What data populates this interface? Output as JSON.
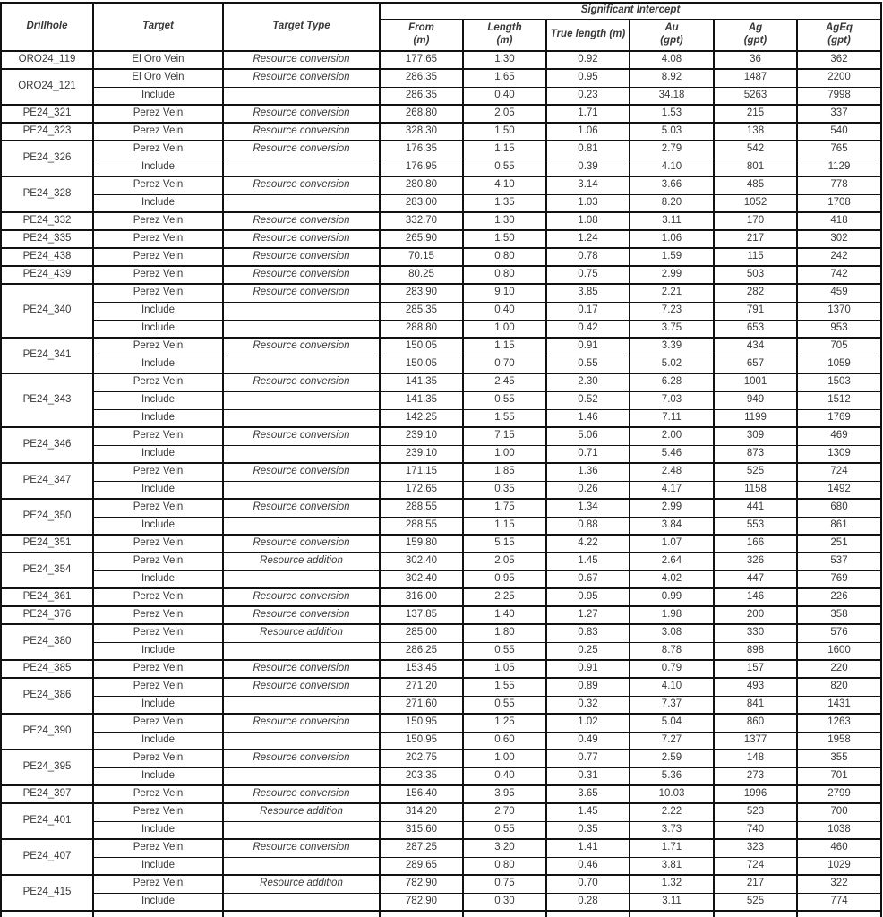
{
  "table": {
    "header": {
      "drillhole": "Drillhole",
      "target": "Target",
      "target_type": "Target Type",
      "significant_intercept": "Significant Intercept",
      "columns": [
        {
          "label": "From",
          "unit": "(m)"
        },
        {
          "label": "Length",
          "unit": "(m)"
        },
        {
          "label": "True length (m)",
          "unit": ""
        },
        {
          "label": "Au",
          "unit": "(gpt)"
        },
        {
          "label": "Ag",
          "unit": "(gpt)"
        },
        {
          "label": "AgEq",
          "unit": "(gpt)"
        }
      ]
    },
    "groups": [
      {
        "drillhole": "ORO24_119",
        "rows": [
          {
            "target": "El Oro Vein",
            "target_type": "Resource conversion",
            "from": "177.65",
            "length": "1.30",
            "true_length": "0.92",
            "au": "4.08",
            "ag": "36",
            "ageq": "362"
          }
        ]
      },
      {
        "drillhole": "ORO24_121",
        "rows": [
          {
            "target": "El Oro Vein",
            "target_type": "Resource conversion",
            "from": "286.35",
            "length": "1.65",
            "true_length": "0.95",
            "au": "8.92",
            "ag": "1487",
            "ageq": "2200"
          },
          {
            "target": "Include",
            "target_type": "",
            "from": "286.35",
            "length": "0.40",
            "true_length": "0.23",
            "au": "34.18",
            "ag": "5263",
            "ageq": "7998"
          }
        ]
      },
      {
        "drillhole": "PE24_321",
        "rows": [
          {
            "target": "Perez Vein",
            "target_type": "Resource conversion",
            "from": "268.80",
            "length": "2.05",
            "true_length": "1.71",
            "au": "1.53",
            "ag": "215",
            "ageq": "337"
          }
        ]
      },
      {
        "drillhole": "PE24_323",
        "rows": [
          {
            "target": "Perez Vein",
            "target_type": "Resource conversion",
            "from": "328.30",
            "length": "1.50",
            "true_length": "1.06",
            "au": "5.03",
            "ag": "138",
            "ageq": "540"
          }
        ]
      },
      {
        "drillhole": "PE24_326",
        "rows": [
          {
            "target": "Perez Vein",
            "target_type": "Resource conversion",
            "from": "176.35",
            "length": "1.15",
            "true_length": "0.81",
            "au": "2.79",
            "ag": "542",
            "ageq": "765"
          },
          {
            "target": "Include",
            "target_type": "",
            "from": "176.95",
            "length": "0.55",
            "true_length": "0.39",
            "au": "4.10",
            "ag": "801",
            "ageq": "1129"
          }
        ]
      },
      {
        "drillhole": "PE24_328",
        "rows": [
          {
            "target": "Perez Vein",
            "target_type": "Resource conversion",
            "from": "280.80",
            "length": "4.10",
            "true_length": "3.14",
            "au": "3.66",
            "ag": "485",
            "ageq": "778"
          },
          {
            "target": "Include",
            "target_type": "",
            "from": "283.00",
            "length": "1.35",
            "true_length": "1.03",
            "au": "8.20",
            "ag": "1052",
            "ageq": "1708"
          }
        ]
      },
      {
        "drillhole": "PE24_332",
        "rows": [
          {
            "target": "Perez Vein",
            "target_type": "Resource conversion",
            "from": "332.70",
            "length": "1.30",
            "true_length": "1.08",
            "au": "3.11",
            "ag": "170",
            "ageq": "418"
          }
        ]
      },
      {
        "drillhole": "PE24_335",
        "rows": [
          {
            "target": "Perez Vein",
            "target_type": "Resource conversion",
            "from": "265.90",
            "length": "1.50",
            "true_length": "1.24",
            "au": "1.06",
            "ag": "217",
            "ageq": "302"
          }
        ]
      },
      {
        "drillhole": "PE24_438",
        "rows": [
          {
            "target": "Perez Vein",
            "target_type": "Resource conversion",
            "from": "70.15",
            "length": "0.80",
            "true_length": "0.78",
            "au": "1.59",
            "ag": "115",
            "ageq": "242"
          }
        ]
      },
      {
        "drillhole": "PE24_439",
        "rows": [
          {
            "target": "Perez Vein",
            "target_type": "Resource conversion",
            "from": "80.25",
            "length": "0.80",
            "true_length": "0.75",
            "au": "2.99",
            "ag": "503",
            "ageq": "742"
          }
        ]
      },
      {
        "drillhole": "PE24_340",
        "rows": [
          {
            "target": "Perez Vein",
            "target_type": "Resource conversion",
            "from": "283.90",
            "length": "9.10",
            "true_length": "3.85",
            "au": "2.21",
            "ag": "282",
            "ageq": "459"
          },
          {
            "target": "Include",
            "target_type": "",
            "from": "285.35",
            "length": "0.40",
            "true_length": "0.17",
            "au": "7.23",
            "ag": "791",
            "ageq": "1370"
          },
          {
            "target": "Include",
            "target_type": "",
            "from": "288.80",
            "length": "1.00",
            "true_length": "0.42",
            "au": "3.75",
            "ag": "653",
            "ageq": "953"
          }
        ]
      },
      {
        "drillhole": "PE24_341",
        "rows": [
          {
            "target": "Perez Vein",
            "target_type": "Resource conversion",
            "from": "150.05",
            "length": "1.15",
            "true_length": "0.91",
            "au": "3.39",
            "ag": "434",
            "ageq": "705"
          },
          {
            "target": "Include",
            "target_type": "",
            "from": "150.05",
            "length": "0.70",
            "true_length": "0.55",
            "au": "5.02",
            "ag": "657",
            "ageq": "1059"
          }
        ]
      },
      {
        "drillhole": "PE24_343",
        "rows": [
          {
            "target": "Perez Vein",
            "target_type": "Resource conversion",
            "from": "141.35",
            "length": "2.45",
            "true_length": "2.30",
            "au": "6.28",
            "ag": "1001",
            "ageq": "1503"
          },
          {
            "target": "Include",
            "target_type": "",
            "from": "141.35",
            "length": "0.55",
            "true_length": "0.52",
            "au": "7.03",
            "ag": "949",
            "ageq": "1512"
          },
          {
            "target": "Include",
            "target_type": "",
            "from": "142.25",
            "length": "1.55",
            "true_length": "1.46",
            "au": "7.11",
            "ag": "1199",
            "ageq": "1769"
          }
        ]
      },
      {
        "drillhole": "PE24_346",
        "rows": [
          {
            "target": "Perez Vein",
            "target_type": "Resource conversion",
            "from": "239.10",
            "length": "7.15",
            "true_length": "5.06",
            "au": "2.00",
            "ag": "309",
            "ageq": "469"
          },
          {
            "target": "Include",
            "target_type": "",
            "from": "239.10",
            "length": "1.00",
            "true_length": "0.71",
            "au": "5.46",
            "ag": "873",
            "ageq": "1309"
          }
        ]
      },
      {
        "drillhole": "PE24_347",
        "rows": [
          {
            "target": "Perez Vein",
            "target_type": "Resource conversion",
            "from": "171.15",
            "length": "1.85",
            "true_length": "1.36",
            "au": "2.48",
            "ag": "525",
            "ageq": "724"
          },
          {
            "target": "Include",
            "target_type": "",
            "from": "172.65",
            "length": "0.35",
            "true_length": "0.26",
            "au": "4.17",
            "ag": "1158",
            "ageq": "1492"
          }
        ]
      },
      {
        "drillhole": "PE24_350",
        "rows": [
          {
            "target": "Perez Vein",
            "target_type": "Resource conversion",
            "from": "288.55",
            "length": "1.75",
            "true_length": "1.34",
            "au": "2.99",
            "ag": "441",
            "ageq": "680"
          },
          {
            "target": "Include",
            "target_type": "",
            "from": "288.55",
            "length": "1.15",
            "true_length": "0.88",
            "au": "3.84",
            "ag": "553",
            "ageq": "861"
          }
        ]
      },
      {
        "drillhole": "PE24_351",
        "rows": [
          {
            "target": "Perez Vein",
            "target_type": "Resource conversion",
            "from": "159.80",
            "length": "5.15",
            "true_length": "4.22",
            "au": "1.07",
            "ag": "166",
            "ageq": "251"
          }
        ]
      },
      {
        "drillhole": "PE24_354",
        "rows": [
          {
            "target": "Perez Vein",
            "target_type": "Resource addition",
            "from": "302.40",
            "length": "2.05",
            "true_length": "1.45",
            "au": "2.64",
            "ag": "326",
            "ageq": "537"
          },
          {
            "target": "Include",
            "target_type": "",
            "from": "302.40",
            "length": "0.95",
            "true_length": "0.67",
            "au": "4.02",
            "ag": "447",
            "ageq": "769"
          }
        ]
      },
      {
        "drillhole": "PE24_361",
        "rows": [
          {
            "target": "Perez Vein",
            "target_type": "Resource conversion",
            "from": "316.00",
            "length": "2.25",
            "true_length": "0.95",
            "au": "0.99",
            "ag": "146",
            "ageq": "226"
          }
        ]
      },
      {
        "drillhole": "PE24_376",
        "rows": [
          {
            "target": "Perez Vein",
            "target_type": "Resource conversion",
            "from": "137.85",
            "length": "1.40",
            "true_length": "1.27",
            "au": "1.98",
            "ag": "200",
            "ageq": "358"
          }
        ]
      },
      {
        "drillhole": "PE24_380",
        "rows": [
          {
            "target": "Perez Vein",
            "target_type": "Resource addition",
            "from": "285.00",
            "length": "1.80",
            "true_length": "0.83",
            "au": "3.08",
            "ag": "330",
            "ageq": "576"
          },
          {
            "target": "Include",
            "target_type": "",
            "from": "286.25",
            "length": "0.55",
            "true_length": "0.25",
            "au": "8.78",
            "ag": "898",
            "ageq": "1600"
          }
        ]
      },
      {
        "drillhole": "PE24_385",
        "rows": [
          {
            "target": "Perez Vein",
            "target_type": "Resource conversion",
            "from": "153.45",
            "length": "1.05",
            "true_length": "0.91",
            "au": "0.79",
            "ag": "157",
            "ageq": "220"
          }
        ]
      },
      {
        "drillhole": "PE24_386",
        "rows": [
          {
            "target": "Perez Vein",
            "target_type": "Resource conversion",
            "from": "271.20",
            "length": "1.55",
            "true_length": "0.89",
            "au": "4.10",
            "ag": "493",
            "ageq": "820"
          },
          {
            "target": "Include",
            "target_type": "",
            "from": "271.60",
            "length": "0.55",
            "true_length": "0.32",
            "au": "7.37",
            "ag": "841",
            "ageq": "1431"
          }
        ]
      },
      {
        "drillhole": "PE24_390",
        "rows": [
          {
            "target": "Perez Vein",
            "target_type": "Resource conversion",
            "from": "150.95",
            "length": "1.25",
            "true_length": "1.02",
            "au": "5.04",
            "ag": "860",
            "ageq": "1263"
          },
          {
            "target": "Include",
            "target_type": "",
            "from": "150.95",
            "length": "0.60",
            "true_length": "0.49",
            "au": "7.27",
            "ag": "1377",
            "ageq": "1958"
          }
        ]
      },
      {
        "drillhole": "PE24_395",
        "rows": [
          {
            "target": "Perez Vein",
            "target_type": "Resource conversion",
            "from": "202.75",
            "length": "1.00",
            "true_length": "0.77",
            "au": "2.59",
            "ag": "148",
            "ageq": "355"
          },
          {
            "target": "Include",
            "target_type": "",
            "from": "203.35",
            "length": "0.40",
            "true_length": "0.31",
            "au": "5.36",
            "ag": "273",
            "ageq": "701"
          }
        ]
      },
      {
        "drillhole": "PE24_397",
        "rows": [
          {
            "target": "Perez Vein",
            "target_type": "Resource conversion",
            "from": "156.40",
            "length": "3.95",
            "true_length": "3.65",
            "au": "10.03",
            "ag": "1996",
            "ageq": "2799"
          }
        ]
      },
      {
        "drillhole": "PE24_401",
        "rows": [
          {
            "target": "Perez Vein",
            "target_type": "Resource addition",
            "from": "314.20",
            "length": "2.70",
            "true_length": "1.45",
            "au": "2.22",
            "ag": "523",
            "ageq": "700"
          },
          {
            "target": "Include",
            "target_type": "",
            "from": "315.60",
            "length": "0.55",
            "true_length": "0.35",
            "au": "3.73",
            "ag": "740",
            "ageq": "1038"
          }
        ]
      },
      {
        "drillhole": "PE24_407",
        "rows": [
          {
            "target": "Perez Vein",
            "target_type": "Resource conversion",
            "from": "287.25",
            "length": "3.20",
            "true_length": "1.41",
            "au": "1.71",
            "ag": "323",
            "ageq": "460"
          },
          {
            "target": "Include",
            "target_type": "",
            "from": "289.65",
            "length": "0.80",
            "true_length": "0.46",
            "au": "3.81",
            "ag": "724",
            "ageq": "1029"
          }
        ]
      },
      {
        "drillhole": "PE24_415",
        "rows": [
          {
            "target": "Perez Vein",
            "target_type": "Resource addition",
            "from": "782.90",
            "length": "0.75",
            "true_length": "0.70",
            "au": "1.32",
            "ag": "217",
            "ageq": "322"
          },
          {
            "target": "Include",
            "target_type": "",
            "from": "782.90",
            "length": "0.30",
            "true_length": "0.28",
            "au": "3.11",
            "ag": "525",
            "ageq": "774"
          }
        ]
      }
    ]
  }
}
